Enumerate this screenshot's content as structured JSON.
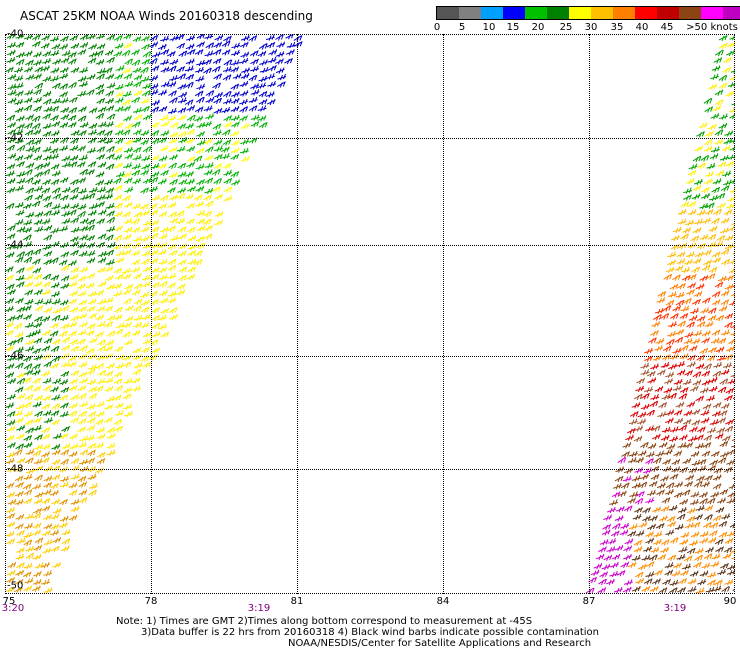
{
  "title": "ASCAT 25KM NOAA Winds 20160318 descending",
  "legend": {
    "colors": [
      "#555555",
      "#808080",
      "#00a0ff",
      "#0000ff",
      "#00c000",
      "#008000",
      "#ffff00",
      "#ffc000",
      "#ff8000",
      "#ff0000",
      "#c00000",
      "#8b4513",
      "#ff00ff",
      "#c000c0",
      "#400080"
    ],
    "labels": [
      "0",
      "5",
      "10",
      "15",
      "20",
      "25",
      "30",
      "35",
      "40",
      "45",
      ">50 knots"
    ]
  },
  "axes": {
    "lat_labels": [
      "-40",
      "-42",
      "-44",
      "-46",
      "-48",
      "-50"
    ],
    "lon_labels": [
      "75",
      "78",
      "81",
      "84",
      "87",
      "90"
    ]
  },
  "times": [
    "3:20",
    "3:19",
    "3:19"
  ],
  "notes": {
    "line1": "Note: 1) Times are GMT 2)Times along bottom correspond to measurement at -45S",
    "line2": "3)Data buffer is 22 hrs from 20160318 4) Black wind barbs indicate possible contamination",
    "line3": "NOAA/NESDIS/Center for Satellite Applications and Research"
  }
}
